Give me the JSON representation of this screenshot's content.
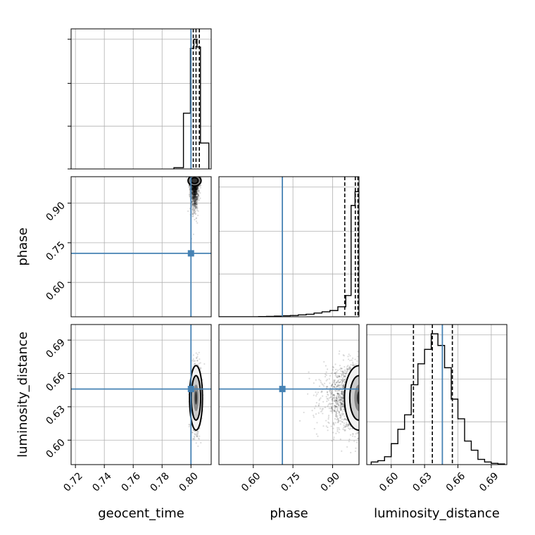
{
  "chart_data": {
    "type": "corner",
    "parameters": [
      "geocent_time",
      "phase",
      "luminosity_distance"
    ],
    "truth_color": "#4682b4",
    "truths": {
      "geocent_time": 0.8,
      "phase": 0.71,
      "luminosity_distance": 0.646
    },
    "ranges": {
      "geocent_time": [
        0.717,
        0.814
      ],
      "phase": [
        0.47,
        1.0
      ],
      "luminosity_distance": [
        0.578,
        0.704
      ]
    },
    "ticks": {
      "geocent_time": {
        "values": [
          0.72,
          0.74,
          0.76,
          0.78,
          0.8
        ],
        "labels": [
          "0.72",
          "0.74",
          "0.76",
          "0.78",
          "0.80"
        ]
      },
      "phase": {
        "values": [
          0.6,
          0.75,
          0.9
        ],
        "labels": [
          "0.60",
          "0.75",
          "0.90"
        ]
      },
      "luminosity_distance": {
        "values": [
          0.6,
          0.63,
          0.66,
          0.69
        ],
        "labels": [
          "0.60",
          "0.63",
          "0.66",
          "0.69"
        ]
      }
    },
    "quantiles": {
      "geocent_time": [
        0.8016,
        0.8035,
        0.8058
      ],
      "phase": [
        0.946,
        0.986,
        0.996
      ],
      "luminosity_distance": [
        0.62,
        0.637,
        0.655
      ]
    },
    "histograms": {
      "geocent_time": {
        "edges": [
          0.7882,
          0.7948,
          0.7996,
          0.802,
          0.8042,
          0.8066,
          0.8124
        ],
        "counts": [
          0.01,
          0.43,
          0.93,
          1.0,
          0.94,
          0.2
        ],
        "ymax": 1.08
      },
      "phase": {
        "edges": [
          0.47,
          0.5,
          0.53,
          0.56,
          0.59,
          0.62,
          0.65,
          0.68,
          0.71,
          0.74,
          0.77,
          0.8,
          0.83,
          0.86,
          0.89,
          0.92,
          0.95,
          0.97,
          0.985,
          1.0
        ],
        "counts": [
          0.0,
          0.0,
          0.0,
          0.0,
          0.0,
          0.002,
          0.003,
          0.005,
          0.008,
          0.01,
          0.015,
          0.02,
          0.03,
          0.04,
          0.05,
          0.08,
          0.17,
          0.89,
          1.0
        ],
        "ymax": 1.12
      },
      "luminosity_distance": {
        "edges": [
          0.582,
          0.588,
          0.594,
          0.6,
          0.606,
          0.612,
          0.618,
          0.624,
          0.63,
          0.636,
          0.642,
          0.648,
          0.654,
          0.66,
          0.666,
          0.672,
          0.678,
          0.684,
          0.69,
          0.696,
          0.702
        ],
        "counts": [
          0.02,
          0.03,
          0.06,
          0.16,
          0.27,
          0.38,
          0.61,
          0.77,
          0.88,
          1.0,
          0.91,
          0.74,
          0.5,
          0.35,
          0.18,
          0.11,
          0.04,
          0.02,
          0.01,
          0.005
        ],
        "ymax": 1.07
      }
    },
    "scatter_clouds": [
      {
        "x": "geocent_time",
        "y": "phase",
        "mean": [
          0.8025,
          0.975
        ],
        "sd": [
          0.0014,
          0.05
        ],
        "n": 1400,
        "y_max": 1.0
      },
      {
        "x": "geocent_time",
        "y": "luminosity_distance",
        "mean": [
          0.8035,
          0.638
        ],
        "sd": [
          0.0016,
          0.014
        ],
        "n": 1400
      },
      {
        "x": "phase",
        "y": "luminosity_distance",
        "mean": [
          0.975,
          0.638
        ],
        "sd": [
          0.055,
          0.014
        ],
        "n": 1400,
        "x_max": 1.0
      }
    ],
    "density_contours": [
      {
        "x": "geocent_time",
        "y": "phase",
        "center": [
          0.8025,
          0.985
        ],
        "levels": [
          [
            0.0045,
            0.02
          ],
          [
            0.0025,
            0.011
          ]
        ]
      },
      {
        "x": "geocent_time",
        "y": "luminosity_distance",
        "center": [
          0.8035,
          0.638
        ],
        "levels": [
          [
            0.0045,
            0.029
          ],
          [
            0.0032,
            0.02
          ],
          [
            0.0018,
            0.012
          ],
          [
            0.0008,
            0.006
          ]
        ]
      },
      {
        "x": "phase",
        "y": "luminosity_distance",
        "center": [
          1.0,
          0.638
        ],
        "levels": [
          [
            0.055,
            0.029
          ],
          [
            0.035,
            0.02
          ],
          [
            0.018,
            0.012
          ],
          [
            0.008,
            0.006
          ]
        ]
      }
    ]
  }
}
